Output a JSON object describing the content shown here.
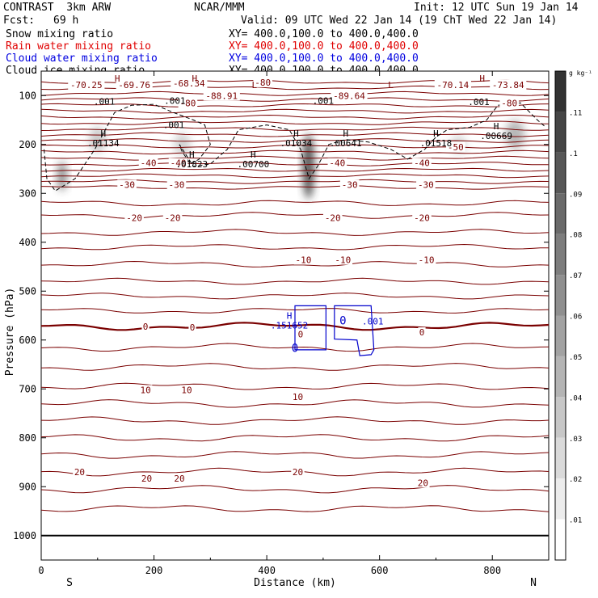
{
  "header": {
    "model": "CONTRAST  3km ARW",
    "source": "NCAR/MMM",
    "init": "Init: 12 UTC Sun 19 Jan 14",
    "fcst_label": "Fcst:",
    "fcst_value": "69 h",
    "valid": "Valid: 09 UTC Wed 22 Jan 14 (19 ChT Wed 22 Jan 14)",
    "fields": [
      {
        "name": "Snow mixing ratio",
        "xy": "XY= 400.0,100.0 to 400.0,400.0",
        "color": "#000000"
      },
      {
        "name": "Rain water mixing ratio",
        "xy": "XY= 400.0,100.0 to 400.0,400.0",
        "color": "#e00000"
      },
      {
        "name": "Cloud water mixing ratio",
        "xy": "XY= 400.0,100.0 to 400.0,400.0",
        "color": "#0000e0"
      },
      {
        "name": "Cloud ice mixing ratio",
        "xy": "XY= 400.0,100.0 to 400.0,400.0",
        "color": "#000000"
      }
    ]
  },
  "chart_data": {
    "type": "contour cross-section",
    "xlabel": "Distance (km)",
    "ylabel": "Pressure (hPa)",
    "xlim": [
      0,
      900
    ],
    "ylim": [
      1050,
      50
    ],
    "x_ticks": [
      0,
      200,
      400,
      600,
      800
    ],
    "y_ticks": [
      100,
      200,
      300,
      400,
      500,
      600,
      700,
      800,
      900,
      1000
    ],
    "end_labels": {
      "left": "S",
      "right": "N"
    },
    "temperature_contour_labels": [
      {
        "text": "-70.25",
        "x": 80,
        "p": 78
      },
      {
        "text": "-69.76",
        "x": 165,
        "p": 78
      },
      {
        "text": "-68.34",
        "x": 262,
        "p": 75
      },
      {
        "text": "-80",
        "x": 393,
        "p": 73
      },
      {
        "text": "-88.91",
        "x": 320,
        "p": 100
      },
      {
        "text": "-89.64",
        "x": 546,
        "p": 100
      },
      {
        "text": "-70.14",
        "x": 730,
        "p": 78
      },
      {
        "text": "-73.84",
        "x": 828,
        "p": 78
      },
      {
        "text": "-80",
        "x": 830,
        "p": 115
      },
      {
        "text": "-80",
        "x": 260,
        "p": 115
      },
      {
        "text": "-50",
        "x": 735,
        "p": 205
      },
      {
        "text": "-40",
        "x": 190,
        "p": 238
      },
      {
        "text": "-40",
        "x": 243,
        "p": 238
      },
      {
        "text": "-40",
        "x": 525,
        "p": 238
      },
      {
        "text": "-40",
        "x": 675,
        "p": 238
      },
      {
        "text": "-30",
        "x": 152,
        "p": 282
      },
      {
        "text": "-30",
        "x": 240,
        "p": 282
      },
      {
        "text": "-30",
        "x": 547,
        "p": 282
      },
      {
        "text": "-30",
        "x": 682,
        "p": 282
      },
      {
        "text": "-20",
        "x": 165,
        "p": 350
      },
      {
        "text": "-20",
        "x": 233,
        "p": 350
      },
      {
        "text": "-20",
        "x": 517,
        "p": 350
      },
      {
        "text": "-20",
        "x": 675,
        "p": 350
      },
      {
        "text": "-10",
        "x": 465,
        "p": 436
      },
      {
        "text": "-10",
        "x": 535,
        "p": 436
      },
      {
        "text": "-10",
        "x": 683,
        "p": 436
      },
      {
        "text": "0",
        "x": 185,
        "p": 572
      },
      {
        "text": "0",
        "x": 268,
        "p": 574
      },
      {
        "text": "0",
        "x": 460,
        "p": 588
      },
      {
        "text": "0",
        "x": 675,
        "p": 584
      },
      {
        "text": "10",
        "x": 185,
        "p": 702
      },
      {
        "text": "10",
        "x": 258,
        "p": 702
      },
      {
        "text": "10",
        "x": 455,
        "p": 716
      },
      {
        "text": "20",
        "x": 68,
        "p": 870
      },
      {
        "text": "20",
        "x": 187,
        "p": 883
      },
      {
        "text": "20",
        "x": 245,
        "p": 883
      },
      {
        "text": "20",
        "x": 455,
        "p": 870
      },
      {
        "text": "20",
        "x": 677,
        "p": 892
      }
    ],
    "extrema_labels": [
      {
        "mark": "H",
        "value": "",
        "x": 135,
        "p": 75
      },
      {
        "mark": "H",
        "value": "",
        "x": 272,
        "p": 75
      },
      {
        "mark": "H",
        "value": "",
        "x": 782,
        "p": 75
      },
      {
        "mark": "L",
        "value": "",
        "x": 378,
        "p": 88
      },
      {
        "mark": "L",
        "value": "",
        "x": 620,
        "p": 88
      },
      {
        "mark": "H",
        "value": ".01134",
        "x": 110,
        "p": 187
      },
      {
        "mark": "H",
        "value": ".01823",
        "x": 267,
        "p": 230
      },
      {
        "mark": "H",
        "value": ".00700",
        "x": 376,
        "p": 230
      },
      {
        "mark": "H",
        "value": ".01034",
        "x": 452,
        "p": 187
      },
      {
        "mark": "H",
        "value": ".00641",
        "x": 540,
        "p": 187
      },
      {
        "mark": "H",
        "value": ".01518",
        "x": 700,
        "p": 187
      },
      {
        "mark": "H",
        "value": ".00669",
        "x": 807,
        "p": 172
      },
      {
        "mark": "H",
        "value": ".151652",
        "x": 440,
        "p": 560
      }
    ],
    "cloud_ice_labels": [
      {
        "text": ".001",
        "x": 112,
        "p": 112
      },
      {
        "text": ".001",
        "x": 237,
        "p": 110
      },
      {
        "text": ".001",
        "x": 235,
        "p": 160
      },
      {
        "text": ".001",
        "x": 500,
        "p": 110
      },
      {
        "text": ".001",
        "x": 776,
        "p": 113
      }
    ],
    "cloud_water_labels": [
      {
        "text": "0",
        "x": 535,
        "p": 560
      },
      {
        "text": ".001",
        "x": 588,
        "p": 560
      },
      {
        "text": "0",
        "x": 450,
        "p": 616
      }
    ],
    "colorbar": {
      "unit": "g kg⁻¹",
      "ticks": [
        ".11",
        ".1",
        ".09",
        ".08",
        ".07",
        ".06",
        ".05",
        ".04",
        ".03",
        ".02",
        ".01"
      ]
    },
    "colors": {
      "temperature": "#7a0000",
      "rain_label": "#cc0000",
      "cloud_water": "#0000cc",
      "ice": "#000000"
    }
  }
}
